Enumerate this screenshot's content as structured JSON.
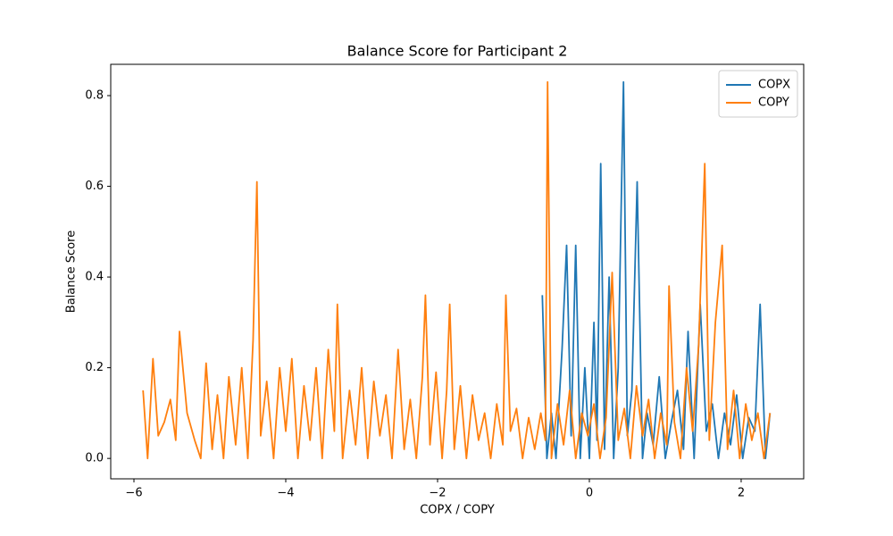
{
  "chart_data": {
    "type": "line",
    "title": "Balance Score for Participant 2",
    "x_label": "COPX / COPY",
    "y_label": "Balance Score",
    "xlim": [
      -6.306,
      2.824
    ],
    "ylim": [
      -0.045,
      0.869
    ],
    "xticks": [
      {
        "value": -6,
        "label": "−6"
      },
      {
        "value": -4,
        "label": "−4"
      },
      {
        "value": -2,
        "label": "−2"
      },
      0,
      2
    ],
    "yticks": [
      {
        "value": 0,
        "label": "0.0"
      },
      0.2,
      0.4,
      0.6,
      0.8
    ],
    "legend": "upper right",
    "grid": false,
    "series": [
      {
        "name": "COPX",
        "color": "#1f77b4",
        "x": [
          -0.62,
          -0.56,
          -0.5,
          -0.44,
          -0.36,
          -0.3,
          -0.24,
          -0.18,
          -0.12,
          -0.06,
          0.0,
          0.06,
          0.1,
          0.15,
          0.2,
          0.26,
          0.32,
          0.38,
          0.45,
          0.5,
          0.56,
          0.63,
          0.7,
          0.76,
          0.84,
          0.92,
          1.0,
          1.08,
          1.16,
          1.24,
          1.3,
          1.38,
          1.46,
          1.54,
          1.62,
          1.7,
          1.78,
          1.86,
          1.94,
          2.02,
          2.1,
          2.18,
          2.25,
          2.32,
          2.38
        ],
        "values": [
          0.36,
          0.0,
          0.1,
          0.0,
          0.24,
          0.47,
          0.05,
          0.47,
          0.0,
          0.2,
          0.0,
          0.3,
          0.04,
          0.65,
          0.02,
          0.4,
          0.0,
          0.2,
          0.83,
          0.05,
          0.15,
          0.61,
          0.0,
          0.1,
          0.03,
          0.18,
          0.0,
          0.08,
          0.15,
          0.02,
          0.28,
          0.0,
          0.34,
          0.06,
          0.12,
          0.0,
          0.1,
          0.03,
          0.14,
          0.0,
          0.09,
          0.06,
          0.34,
          0.0,
          0.1
        ]
      },
      {
        "name": "COPY",
        "color": "#ff7f0e",
        "x": [
          -5.88,
          -5.82,
          -5.75,
          -5.68,
          -5.6,
          -5.52,
          -5.45,
          -5.4,
          -5.3,
          -5.2,
          -5.12,
          -5.05,
          -4.97,
          -4.9,
          -4.82,
          -4.75,
          -4.66,
          -4.58,
          -4.5,
          -4.43,
          -4.38,
          -4.33,
          -4.25,
          -4.16,
          -4.08,
          -4.0,
          -3.92,
          -3.84,
          -3.76,
          -3.68,
          -3.6,
          -3.52,
          -3.44,
          -3.36,
          -3.32,
          -3.25,
          -3.16,
          -3.08,
          -3.0,
          -2.92,
          -2.84,
          -2.76,
          -2.68,
          -2.6,
          -2.52,
          -2.44,
          -2.36,
          -2.28,
          -2.2,
          -2.16,
          -2.1,
          -2.02,
          -1.94,
          -1.88,
          -1.84,
          -1.78,
          -1.7,
          -1.62,
          -1.54,
          -1.46,
          -1.38,
          -1.3,
          -1.22,
          -1.14,
          -1.1,
          -1.04,
          -0.96,
          -0.88,
          -0.8,
          -0.72,
          -0.64,
          -0.58,
          -0.55,
          -0.5,
          -0.42,
          -0.34,
          -0.26,
          -0.18,
          -0.1,
          -0.02,
          0.06,
          0.14,
          0.22,
          0.3,
          0.38,
          0.46,
          0.54,
          0.62,
          0.7,
          0.78,
          0.86,
          0.94,
          1.02,
          1.05,
          1.12,
          1.2,
          1.28,
          1.36,
          1.44,
          1.52,
          1.58,
          1.66,
          1.75,
          1.82,
          1.9,
          1.98,
          2.06,
          2.14,
          2.22,
          2.3,
          2.38
        ],
        "values": [
          0.15,
          0.0,
          0.22,
          0.05,
          0.08,
          0.13,
          0.04,
          0.28,
          0.1,
          0.04,
          0.0,
          0.21,
          0.02,
          0.14,
          0.0,
          0.18,
          0.03,
          0.2,
          0.0,
          0.26,
          0.61,
          0.05,
          0.17,
          0.0,
          0.2,
          0.06,
          0.22,
          0.0,
          0.16,
          0.04,
          0.2,
          0.0,
          0.24,
          0.06,
          0.34,
          0.0,
          0.15,
          0.03,
          0.2,
          0.0,
          0.17,
          0.05,
          0.14,
          0.0,
          0.24,
          0.02,
          0.13,
          0.0,
          0.18,
          0.36,
          0.03,
          0.19,
          0.0,
          0.15,
          0.34,
          0.02,
          0.16,
          0.0,
          0.14,
          0.04,
          0.1,
          0.0,
          0.12,
          0.03,
          0.36,
          0.06,
          0.11,
          0.0,
          0.09,
          0.02,
          0.1,
          0.04,
          0.83,
          0.0,
          0.12,
          0.03,
          0.15,
          0.0,
          0.1,
          0.05,
          0.12,
          0.0,
          0.09,
          0.41,
          0.04,
          0.11,
          0.0,
          0.16,
          0.05,
          0.13,
          0.0,
          0.1,
          0.03,
          0.38,
          0.08,
          0.0,
          0.2,
          0.06,
          0.25,
          0.65,
          0.04,
          0.3,
          0.47,
          0.02,
          0.15,
          0.0,
          0.12,
          0.04,
          0.1,
          0.0,
          0.1
        ]
      }
    ]
  }
}
